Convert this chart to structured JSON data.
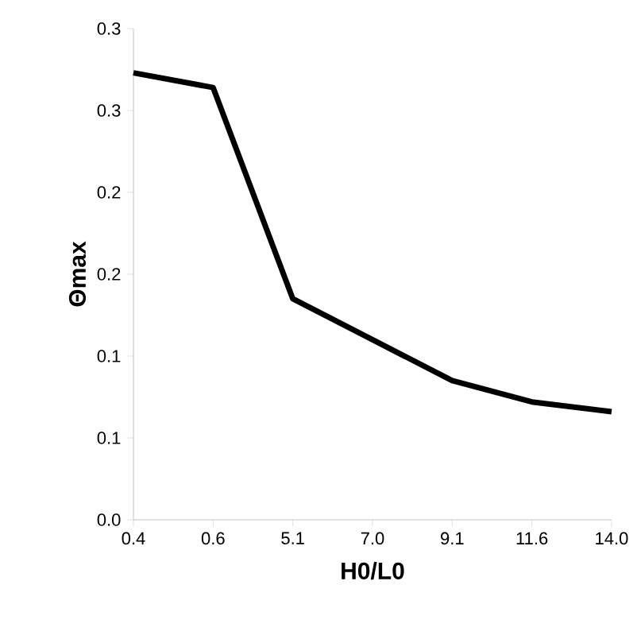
{
  "chart_data": {
    "type": "line",
    "xlabel": "H0/L0",
    "ylabel": "Θmax",
    "categories": [
      "0.4",
      "0.6",
      "5.1",
      "7.0",
      "9.1",
      "11.6",
      "14.0"
    ],
    "series": [
      {
        "color": "#000000",
        "values": [
          0.273,
          0.264,
          0.135,
          0.11,
          0.085,
          0.072,
          0.066
        ]
      }
    ],
    "ylim": [
      0,
      0.3
    ],
    "yticks": [
      {
        "value": 0,
        "label": "0.0"
      },
      {
        "value": 0.05,
        "label": "0.1"
      },
      {
        "value": 0.1,
        "label": "0.1"
      },
      {
        "value": 0.15,
        "label": "0.2"
      },
      {
        "value": 0.2,
        "label": "0.2"
      },
      {
        "value": 0.25,
        "label": "0.3"
      },
      {
        "value": 0.3,
        "label": "0.3"
      }
    ],
    "grid": false,
    "legend": false,
    "marker": "none",
    "line_style": "solid"
  }
}
